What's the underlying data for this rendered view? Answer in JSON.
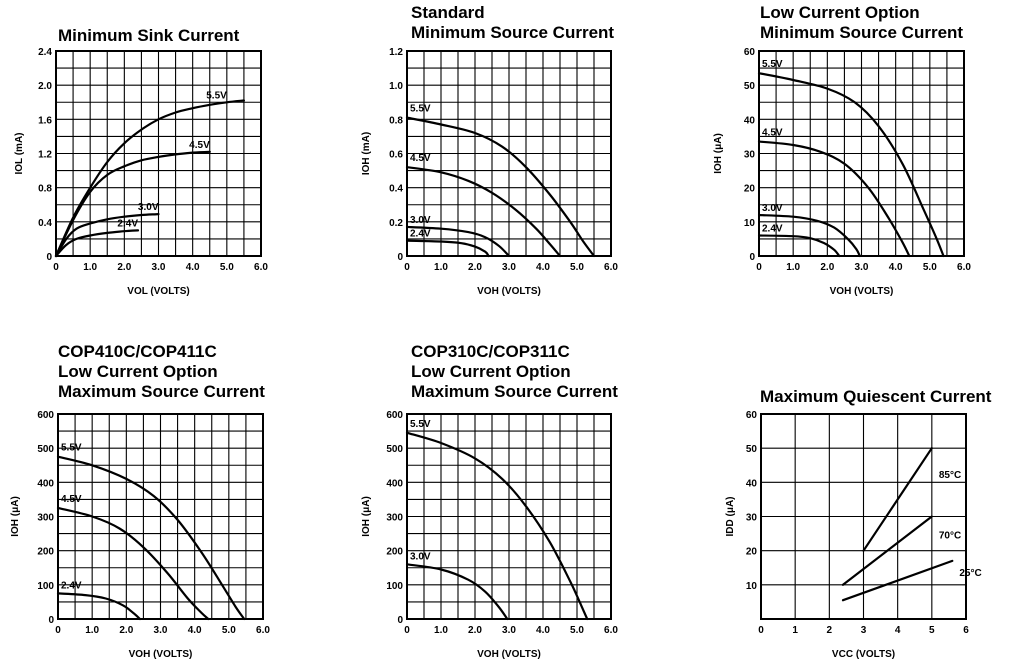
{
  "chart_data": [
    {
      "id": "sink",
      "type": "line",
      "title_lines": [
        "Minimum Sink Current"
      ],
      "xlabel": "VOL (VOLTS)",
      "ylabel": "IOL (mA)",
      "xlim": [
        0,
        6
      ],
      "ylim": [
        0,
        2.4
      ],
      "x_ticks": [
        "0",
        "1.0",
        "2.0",
        "3.0",
        "4.0",
        "5.0",
        "6.0"
      ],
      "y_ticks": [
        "0",
        "0.4",
        "0.8",
        "1.2",
        "1.6",
        "2.0",
        "2.4"
      ],
      "series": [
        {
          "name": "5.5V",
          "points": [
            [
              0,
              0
            ],
            [
              0.5,
              0.45
            ],
            [
              1,
              0.8
            ],
            [
              1.5,
              1.1
            ],
            [
              2,
              1.32
            ],
            [
              2.5,
              1.48
            ],
            [
              3,
              1.6
            ],
            [
              3.5,
              1.68
            ],
            [
              4,
              1.73
            ],
            [
              4.5,
              1.77
            ],
            [
              5,
              1.8
            ],
            [
              5.5,
              1.82
            ]
          ]
        },
        {
          "name": "4.5V",
          "points": [
            [
              0,
              0
            ],
            [
              0.5,
              0.42
            ],
            [
              1,
              0.75
            ],
            [
              1.5,
              0.95
            ],
            [
              2,
              1.05
            ],
            [
              2.5,
              1.12
            ],
            [
              3,
              1.16
            ],
            [
              3.5,
              1.19
            ],
            [
              4,
              1.21
            ],
            [
              4.5,
              1.22
            ]
          ]
        },
        {
          "name": "3.0V",
          "points": [
            [
              0,
              0
            ],
            [
              0.3,
              0.2
            ],
            [
              0.6,
              0.32
            ],
            [
              1,
              0.38
            ],
            [
              1.5,
              0.43
            ],
            [
              2,
              0.46
            ],
            [
              2.5,
              0.48
            ],
            [
              3,
              0.49
            ]
          ]
        },
        {
          "name": "2.4V",
          "points": [
            [
              0,
              0
            ],
            [
              0.3,
              0.13
            ],
            [
              0.6,
              0.2
            ],
            [
              1,
              0.24
            ],
            [
              1.5,
              0.27
            ],
            [
              2,
              0.29
            ],
            [
              2.4,
              0.3
            ]
          ]
        }
      ]
    },
    {
      "id": "std-source",
      "type": "line",
      "title_lines": [
        "Standard",
        "Minimum Source Current"
      ],
      "xlabel": "VOH (VOLTS)",
      "ylabel": "IOH (mA)",
      "xlim": [
        0,
        6
      ],
      "ylim": [
        0,
        1.2
      ],
      "x_ticks": [
        "0",
        "1.0",
        "2.0",
        "3.0",
        "4.0",
        "5.0",
        "6.0"
      ],
      "y_ticks": [
        "0",
        "0.2",
        "0.4",
        "0.6",
        "0.8",
        "1.0",
        "1.2"
      ],
      "series": [
        {
          "name": "5.5V",
          "points": [
            [
              0,
              0.81
            ],
            [
              1,
              0.77
            ],
            [
              2,
              0.72
            ],
            [
              2.8,
              0.64
            ],
            [
              3.5,
              0.52
            ],
            [
              4.2,
              0.36
            ],
            [
              4.8,
              0.2
            ],
            [
              5.2,
              0.08
            ],
            [
              5.5,
              0
            ]
          ]
        },
        {
          "name": "4.5V",
          "points": [
            [
              0,
              0.52
            ],
            [
              1,
              0.49
            ],
            [
              1.8,
              0.44
            ],
            [
              2.5,
              0.37
            ],
            [
              3.2,
              0.27
            ],
            [
              3.8,
              0.16
            ],
            [
              4.2,
              0.07
            ],
            [
              4.5,
              0
            ]
          ]
        },
        {
          "name": "3.0V",
          "points": [
            [
              0,
              0.17
            ],
            [
              1,
              0.16
            ],
            [
              1.8,
              0.14
            ],
            [
              2.3,
              0.11
            ],
            [
              2.7,
              0.06
            ],
            [
              3,
              0
            ]
          ]
        },
        {
          "name": "2.4V",
          "points": [
            [
              0,
              0.09
            ],
            [
              1,
              0.085
            ],
            [
              1.6,
              0.075
            ],
            [
              2,
              0.055
            ],
            [
              2.3,
              0.025
            ],
            [
              2.4,
              0
            ]
          ]
        }
      ]
    },
    {
      "id": "low-min-source",
      "type": "line",
      "title_lines": [
        "Low Current Option",
        "Minimum Source Current"
      ],
      "xlabel": "VOH (VOLTS)",
      "ylabel": "IOH (μA)",
      "xlim": [
        0,
        6
      ],
      "ylim": [
        0,
        60
      ],
      "x_ticks": [
        "0",
        "1.0",
        "2.0",
        "3.0",
        "4.0",
        "5.0",
        "6.0"
      ],
      "y_ticks": [
        "0",
        "10",
        "20",
        "30",
        "40",
        "50",
        "60"
      ],
      "series": [
        {
          "name": "5.5V",
          "points": [
            [
              0,
              53.5
            ],
            [
              1,
              51.5
            ],
            [
              2,
              49
            ],
            [
              2.8,
              45
            ],
            [
              3.5,
              38
            ],
            [
              4.2,
              27
            ],
            [
              4.8,
              14
            ],
            [
              5.2,
              5
            ],
            [
              5.4,
              0
            ]
          ]
        },
        {
          "name": "4.5V",
          "points": [
            [
              0,
              33.5
            ],
            [
              1,
              32.5
            ],
            [
              1.8,
              30.5
            ],
            [
              2.5,
              27
            ],
            [
              3.2,
              20
            ],
            [
              3.8,
              11
            ],
            [
              4.2,
              4
            ],
            [
              4.4,
              0
            ]
          ]
        },
        {
          "name": "3.0V",
          "points": [
            [
              0,
              12
            ],
            [
              1,
              11.5
            ],
            [
              1.7,
              10.3
            ],
            [
              2.2,
              8.3
            ],
            [
              2.6,
              5
            ],
            [
              2.85,
              2
            ],
            [
              2.95,
              0
            ]
          ]
        },
        {
          "name": "2.4V",
          "points": [
            [
              0,
              6
            ],
            [
              1,
              5.8
            ],
            [
              1.5,
              5.2
            ],
            [
              1.9,
              3.8
            ],
            [
              2.2,
              1.8
            ],
            [
              2.35,
              0
            ]
          ]
        }
      ]
    },
    {
      "id": "low-max-410",
      "type": "line",
      "title_lines": [
        "COP410C/COP411C",
        "Low Current Option",
        "Maximum Source Current"
      ],
      "xlabel": "VOH (VOLTS)",
      "ylabel": "IOH (μA)",
      "xlim": [
        0,
        6
      ],
      "ylim": [
        0,
        600
      ],
      "x_ticks": [
        "0",
        "1.0",
        "2.0",
        "3.0",
        "4.0",
        "5.0",
        "6.0"
      ],
      "y_ticks": [
        "0",
        "100",
        "200",
        "300",
        "400",
        "500",
        "600"
      ],
      "series": [
        {
          "name": "5.5V",
          "points": [
            [
              0,
              475
            ],
            [
              1,
              450
            ],
            [
              2,
              410
            ],
            [
              2.8,
              360
            ],
            [
              3.5,
              290
            ],
            [
              4.2,
              195
            ],
            [
              4.8,
              100
            ],
            [
              5.2,
              35
            ],
            [
              5.45,
              0
            ]
          ]
        },
        {
          "name": "4.5V",
          "points": [
            [
              0,
              325
            ],
            [
              1,
              300
            ],
            [
              1.8,
              265
            ],
            [
              2.5,
              210
            ],
            [
              3.2,
              135
            ],
            [
              3.8,
              60
            ],
            [
              4.2,
              18
            ],
            [
              4.4,
              0
            ]
          ]
        },
        {
          "name": "2.4V",
          "points": [
            [
              0,
              75
            ],
            [
              0.8,
              70
            ],
            [
              1.4,
              60
            ],
            [
              1.9,
              40
            ],
            [
              2.2,
              18
            ],
            [
              2.4,
              0
            ]
          ]
        }
      ]
    },
    {
      "id": "low-max-310",
      "type": "line",
      "title_lines": [
        "COP310C/COP311C",
        "Low Current Option",
        "Maximum Source Current"
      ],
      "xlabel": "VOH (VOLTS)",
      "ylabel": "IOH (μA)",
      "xlim": [
        0,
        6
      ],
      "ylim": [
        0,
        600
      ],
      "x_ticks": [
        "0",
        "1.0",
        "2.0",
        "3.0",
        "4.0",
        "5.0",
        "6.0"
      ],
      "y_ticks": [
        "0",
        "100",
        "200",
        "300",
        "400",
        "500",
        "600"
      ],
      "series": [
        {
          "name": "5.5V",
          "points": [
            [
              0,
              545
            ],
            [
              1,
              515
            ],
            [
              2,
              470
            ],
            [
              2.8,
              410
            ],
            [
              3.5,
              330
            ],
            [
              4.2,
              225
            ],
            [
              4.8,
              110
            ],
            [
              5.1,
              45
            ],
            [
              5.3,
              0
            ]
          ]
        },
        {
          "name": "3.0V",
          "points": [
            [
              0,
              160
            ],
            [
              1,
              145
            ],
            [
              1.8,
              115
            ],
            [
              2.3,
              80
            ],
            [
              2.7,
              35
            ],
            [
              2.95,
              0
            ]
          ]
        }
      ]
    },
    {
      "id": "quiescent",
      "type": "line",
      "title_lines": [
        "Maximum Quiescent Current"
      ],
      "xlabel": "VCC (VOLTS)",
      "ylabel": "IDD (μA)",
      "xlim": [
        0,
        6
      ],
      "ylim": [
        0,
        60
      ],
      "x_ticks": [
        "0",
        "1",
        "2",
        "3",
        "4",
        "5",
        "6"
      ],
      "y_ticks": [
        "10",
        "20",
        "30",
        "40",
        "50",
        "60"
      ],
      "series": [
        {
          "name": "85°C",
          "points": [
            [
              3,
              20
            ],
            [
              5,
              50
            ]
          ]
        },
        {
          "name": "70°C",
          "points": [
            [
              2.4,
              10
            ],
            [
              5,
              30
            ]
          ]
        },
        {
          "name": "25°C",
          "points": [
            [
              2.4,
              5.5
            ],
            [
              5.6,
              17
            ]
          ]
        }
      ]
    }
  ]
}
